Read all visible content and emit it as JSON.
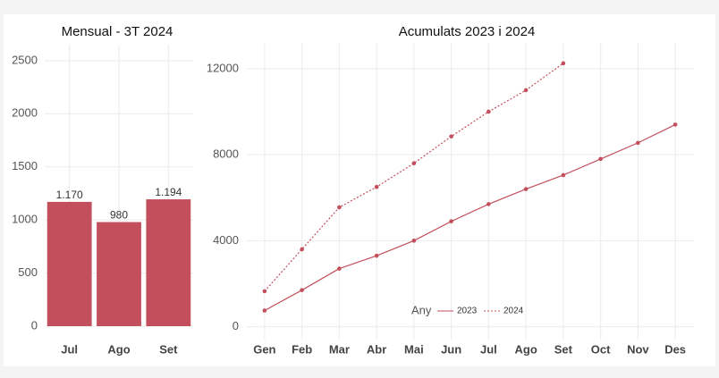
{
  "chart_data": [
    {
      "type": "bar",
      "title": "Mensual - 3T 2024",
      "categories": [
        "Jul",
        "Ago",
        "Set"
      ],
      "values": [
        1170,
        980,
        1194
      ],
      "value_labels": [
        "1.170",
        "980",
        "1.194"
      ],
      "color": "#c24f5b",
      "ylim": [
        0,
        2650
      ],
      "yticks": [
        0,
        500,
        1000,
        1500,
        2000,
        2500
      ],
      "grid": true
    },
    {
      "type": "line",
      "title": "Acumulats 2023 i 2024",
      "categories": [
        "Gen",
        "Feb",
        "Mar",
        "Abr",
        "Mai",
        "Jun",
        "Jul",
        "Ago",
        "Set",
        "Oct",
        "Nov",
        "Des"
      ],
      "series": [
        {
          "name": "2023",
          "color": "#c24f5b",
          "linestyle": "solid",
          "values": [
            750,
            1700,
            2700,
            3300,
            4000,
            4900,
            5700,
            6400,
            7050,
            7800,
            8550,
            9400
          ]
        },
        {
          "name": "2024",
          "color": "#c24f5b",
          "linestyle": "dotted",
          "values": [
            1650,
            3600,
            5550,
            6500,
            7600,
            8850,
            10000,
            11000,
            12250,
            null,
            null,
            null
          ]
        }
      ],
      "legend_title": "Any",
      "legend": "bottom",
      "ylim": [
        -600,
        13200
      ],
      "yticks": [
        0,
        4000,
        8000,
        12000
      ],
      "grid": true
    }
  ]
}
